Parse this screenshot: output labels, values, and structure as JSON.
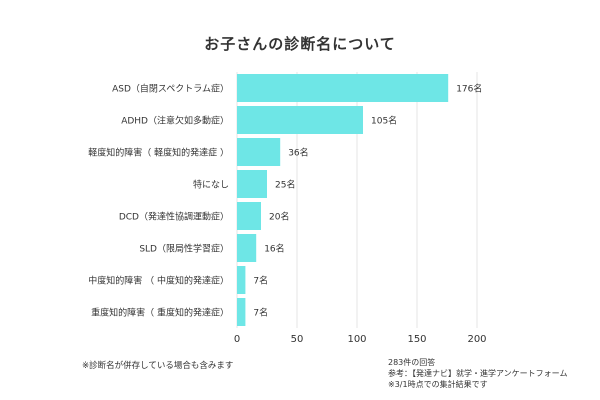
{
  "chart_data": {
    "type": "bar",
    "orientation": "horizontal",
    "title": "お子さんの診断名について",
    "categories": [
      "ASD（自閉スペクトラム症）",
      "ADHD（注意欠如多動症）",
      "軽度知的障害（ 軽度知的発達症 ）",
      "特になし",
      "DCD（発達性協調運動症）",
      "SLD（限局性学習症）",
      "中度知的障害 （ 中度知的発達症）",
      "重度知的障害（ 重度知的発達症）"
    ],
    "values": [
      176,
      105,
      36,
      25,
      20,
      16,
      7,
      7
    ],
    "data_labels": [
      "176名",
      "105名",
      "36名",
      "25名",
      "20名",
      "16名",
      "7名",
      "7名"
    ],
    "xlim": [
      0,
      200
    ],
    "x_ticks": [
      "0",
      "50",
      "100",
      "150",
      "200"
    ],
    "grid": true,
    "bar_color": "#6ee6e6",
    "grid_color": "#e6e6e6"
  },
  "notes": {
    "left": "※診断名が併存している場合も含みます",
    "right": [
      "283件の回答",
      "参考：【発達ナビ】就学・進学アンケートフォーム",
      "※3/1時点での集計結果です"
    ]
  }
}
